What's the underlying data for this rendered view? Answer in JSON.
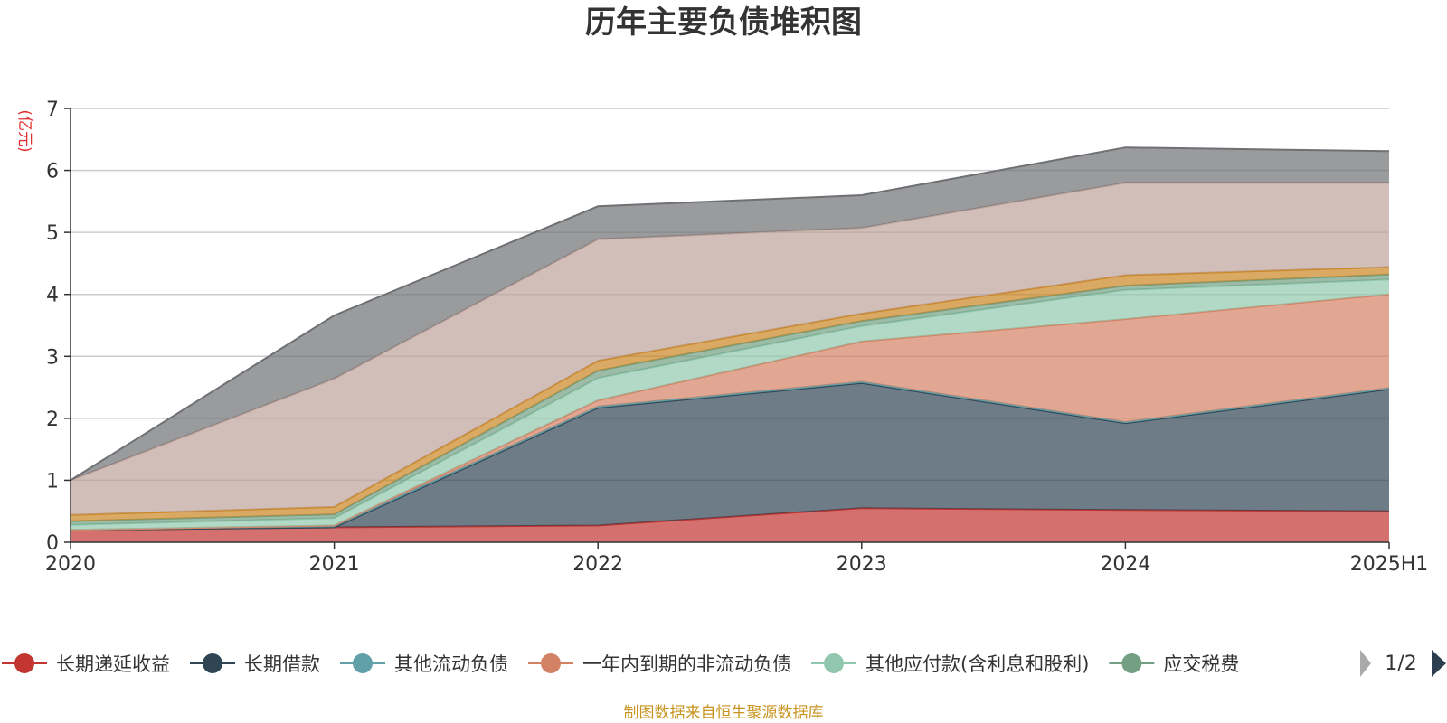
{
  "title": "历年主要负债堆积图",
  "unit": "(亿元)",
  "source": "制图数据来自恒生聚源数据库",
  "legend_page": "1/2",
  "colors": {
    "axis": "#333333",
    "grid": "#cccccc",
    "title": "#333333",
    "unit": "#e03030",
    "source": "#c8941f",
    "pager_active": "#2c3e50",
    "pager_inactive": "#aaaaaa"
  },
  "chart_data": {
    "type": "area",
    "stacked": true,
    "title": "历年主要负债堆积图",
    "ylabel": "(亿元)",
    "xlabel": "",
    "x": [
      "2020",
      "2021",
      "2022",
      "2023",
      "2024",
      "2025H1"
    ],
    "ylim": [
      0,
      7
    ],
    "yticks": [
      0,
      1,
      2,
      3,
      4,
      5,
      6,
      7
    ],
    "grid": true,
    "legend_position": "bottom",
    "series": [
      {
        "name": "长期递延收益",
        "color": "#c23531",
        "values": [
          0.2,
          0.24,
          0.27,
          0.55,
          0.52,
          0.5
        ],
        "legend": true
      },
      {
        "name": "长期借款",
        "color": "#2f4554",
        "values": [
          0.0,
          0.0,
          1.9,
          2.02,
          1.4,
          1.97
        ],
        "legend": true
      },
      {
        "name": "其他流动负债",
        "color": "#61a0a8",
        "values": [
          0.0,
          0.03,
          0.02,
          0.02,
          0.02,
          0.02
        ],
        "legend": true
      },
      {
        "name": "一年内到期的非流动负债",
        "color": "#d48265",
        "values": [
          0.0,
          0.0,
          0.1,
          0.65,
          1.66,
          1.51
        ],
        "legend": true
      },
      {
        "name": "其他应付款(含利息和股利)",
        "color": "#91c7ae",
        "values": [
          0.08,
          0.12,
          0.36,
          0.25,
          0.47,
          0.24
        ],
        "legend": true
      },
      {
        "name": "应交税费",
        "color": "#749f83",
        "values": [
          0.06,
          0.06,
          0.12,
          0.08,
          0.07,
          0.08
        ],
        "legend": true
      },
      {
        "name": "",
        "color": "#ca8622",
        "values": [
          0.1,
          0.12,
          0.16,
          0.12,
          0.17,
          0.12
        ],
        "legend": false
      },
      {
        "name": "",
        "color": "#bda29a",
        "values": [
          0.56,
          2.07,
          1.96,
          1.38,
          1.49,
          1.36
        ],
        "legend": false
      },
      {
        "name": "",
        "color": "#6e7074",
        "values": [
          0.0,
          1.02,
          0.53,
          0.53,
          0.57,
          0.51
        ],
        "legend": false
      }
    ]
  }
}
